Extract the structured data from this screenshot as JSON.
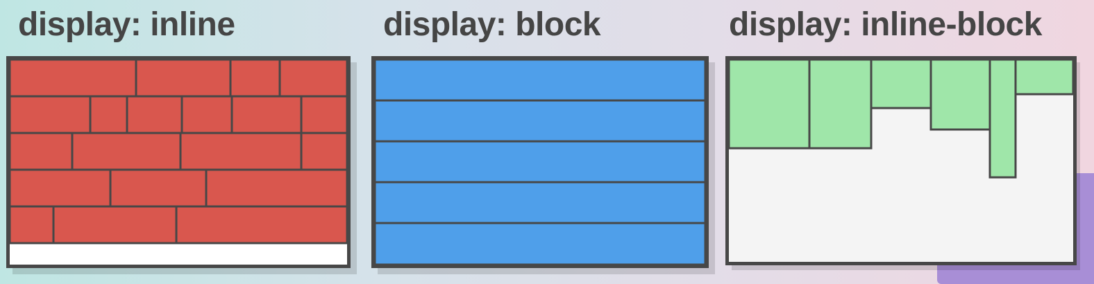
{
  "panels": [
    {
      "title": "display: inline",
      "fill": "#d9574e",
      "background": "#ffffff"
    },
    {
      "title": "display: block",
      "fill": "#4f9fea",
      "background": "#4f9fea"
    },
    {
      "title": "display: inline-block",
      "fill": "#9fe6a9",
      "background": "#f4f4f4"
    }
  ],
  "border_color": "#474747",
  "title_color": "#454545"
}
